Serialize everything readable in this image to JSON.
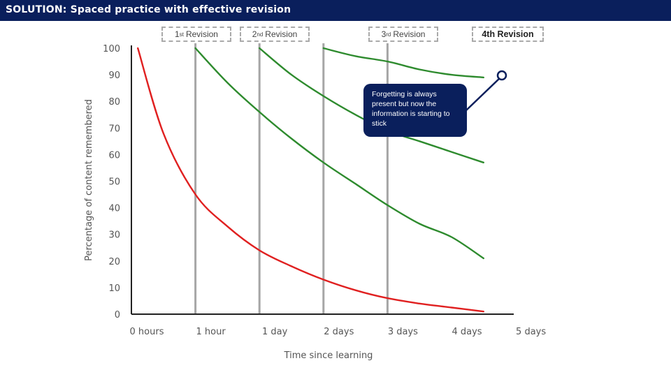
{
  "header": {
    "title": "SOLUTION: Spaced practice with effective revision"
  },
  "revision_labels": [
    {
      "num": "1",
      "sup": "st",
      "text": "Revision"
    },
    {
      "num": "2",
      "sup": "nd",
      "text": "Revision"
    },
    {
      "num": "3",
      "sup": "rd",
      "text": "Revision"
    },
    {
      "num": "",
      "sup": "",
      "text": "4th Revision"
    }
  ],
  "callout": {
    "text": "Forgetting is always present but now the information is starting to stick"
  },
  "colors": {
    "header_bg": "#0a1f5c",
    "forgetting": "#e02020",
    "revision": "#2e8b2e",
    "gridline": "#a6a6a6",
    "axis": "#222222"
  },
  "chart_data": {
    "type": "line",
    "title": "",
    "xlabel": "Time since learning",
    "ylabel": "Percentage of content remembered",
    "x_categories": [
      "0 hours",
      "1 hour",
      "1 day",
      "2 days",
      "3 days",
      "4 days",
      "5 days"
    ],
    "yticks": [
      0,
      10,
      20,
      30,
      40,
      50,
      60,
      70,
      80,
      90,
      100
    ],
    "ylim": [
      0,
      100
    ],
    "xlim": [
      0,
      6
    ],
    "revision_points": [
      1,
      2,
      3,
      4
    ],
    "series": [
      {
        "values": [
          [
            0.1,
            100
          ],
          [
            0.5,
            68
          ],
          [
            1,
            45
          ],
          [
            1.5,
            33
          ],
          [
            2,
            24
          ],
          [
            2.5,
            18
          ],
          [
            3,
            13
          ],
          [
            3.5,
            9
          ],
          [
            4,
            6
          ],
          [
            4.5,
            4
          ],
          [
            5,
            2.5
          ],
          [
            5.5,
            1
          ]
        ]
      },
      {
        "values": [
          [
            1,
            100
          ],
          [
            1.5,
            87
          ],
          [
            2,
            76
          ],
          [
            2.5,
            66
          ],
          [
            3,
            57
          ],
          [
            3.5,
            49
          ],
          [
            4,
            41
          ],
          [
            4.5,
            34
          ],
          [
            5,
            29
          ],
          [
            5.5,
            21
          ]
        ]
      },
      {
        "values": [
          [
            2,
            100
          ],
          [
            2.5,
            90
          ],
          [
            3,
            82
          ],
          [
            3.5,
            75
          ],
          [
            4,
            69
          ],
          [
            4.5,
            65
          ],
          [
            5,
            61
          ],
          [
            5.5,
            57
          ]
        ]
      },
      {
        "values": [
          [
            3,
            100
          ],
          [
            3.5,
            97
          ],
          [
            4,
            95
          ],
          [
            4.5,
            92
          ],
          [
            5,
            90
          ],
          [
            5.5,
            89
          ]
        ]
      }
    ]
  }
}
